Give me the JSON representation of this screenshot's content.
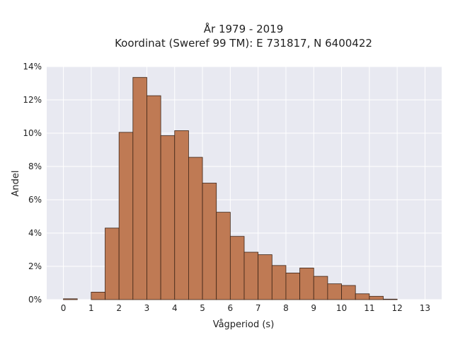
{
  "chart_data": {
    "type": "bar",
    "title": [
      "År 1979 - 2019",
      "Koordinat (Sweref 99 TM): E 731817, N 6400422"
    ],
    "xlabel": "Vågperiod (s)",
    "ylabel": "Andel",
    "bin_width": 0.5,
    "bin_starts": [
      0,
      0.5,
      1,
      1.5,
      2,
      2.5,
      3,
      3.5,
      4,
      4.5,
      5,
      5.5,
      6,
      6.5,
      7,
      7.5,
      8,
      8.5,
      9,
      9.5,
      10,
      10.5,
      11,
      11.5,
      12,
      12.5
    ],
    "values": [
      0.05,
      0.0,
      0.45,
      4.3,
      10.05,
      13.35,
      12.25,
      9.85,
      10.15,
      8.55,
      7.0,
      5.25,
      3.8,
      2.85,
      2.7,
      2.05,
      1.6,
      1.9,
      1.4,
      0.95,
      0.85,
      0.35,
      0.2,
      0.03,
      0.0,
      0.0
    ],
    "xticks": [
      0,
      1,
      2,
      3,
      4,
      5,
      6,
      7,
      8,
      9,
      10,
      11,
      12,
      13
    ],
    "yticks": [
      0,
      2,
      4,
      6,
      8,
      10,
      12,
      14
    ],
    "ytick_labels": [
      "0%",
      "2%",
      "4%",
      "6%",
      "8%",
      "10%",
      "12%",
      "14%"
    ],
    "xlim": [
      -0.6,
      13.6
    ],
    "ylim": [
      0,
      14
    ],
    "grid": true,
    "colors": {
      "bar_fill": "#bf7a54",
      "bar_edge": "#3d2416",
      "plot_background": "#e8e9f1",
      "grid": "#ffffff"
    }
  }
}
